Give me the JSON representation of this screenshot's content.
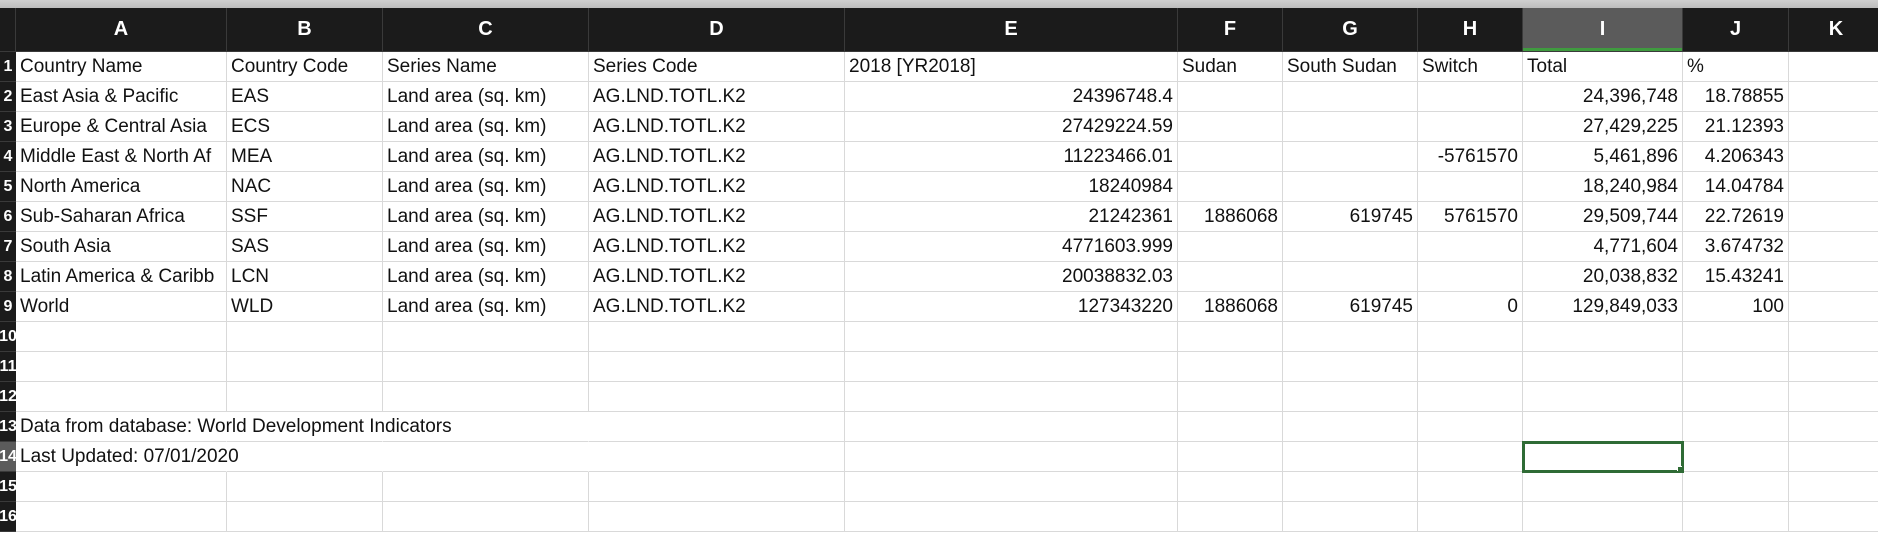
{
  "columns": [
    "A",
    "B",
    "C",
    "D",
    "E",
    "F",
    "G",
    "H",
    "I",
    "J",
    "K"
  ],
  "selected_column": "I",
  "selected_cell": "I14",
  "rows": [
    {
      "n": "1",
      "c": [
        "Country Name",
        "Country Code",
        "Series Name",
        "Series Code",
        "2018 [YR2018]",
        "Sudan",
        "South Sudan",
        "Switch",
        "Total",
        "%",
        ""
      ]
    },
    {
      "n": "2",
      "c": [
        "East Asia & Pacific",
        "EAS",
        "Land area (sq. km)",
        "AG.LND.TOTL.K2",
        "24396748.4",
        "",
        "",
        "",
        "24,396,748",
        "18.78855",
        ""
      ]
    },
    {
      "n": "3",
      "c": [
        "Europe & Central Asia",
        "ECS",
        "Land area (sq. km)",
        "AG.LND.TOTL.K2",
        "27429224.59",
        "",
        "",
        "",
        "27,429,225",
        "21.12393",
        ""
      ]
    },
    {
      "n": "4",
      "c": [
        "Middle East & North Af",
        "MEA",
        "Land area (sq. km)",
        "AG.LND.TOTL.K2",
        "11223466.01",
        "",
        "",
        "-5761570",
        "5,461,896",
        "4.206343",
        ""
      ]
    },
    {
      "n": "5",
      "c": [
        "North America",
        "NAC",
        "Land area (sq. km)",
        "AG.LND.TOTL.K2",
        "18240984",
        "",
        "",
        "",
        "18,240,984",
        "14.04784",
        ""
      ]
    },
    {
      "n": "6",
      "c": [
        "Sub-Saharan Africa",
        "SSF",
        "Land area (sq. km)",
        "AG.LND.TOTL.K2",
        "21242361",
        "1886068",
        "619745",
        "5761570",
        "29,509,744",
        "22.72619",
        ""
      ]
    },
    {
      "n": "7",
      "c": [
        "South Asia",
        "SAS",
        "Land area (sq. km)",
        "AG.LND.TOTL.K2",
        "4771603.999",
        "",
        "",
        "",
        "4,771,604",
        "3.674732",
        ""
      ]
    },
    {
      "n": "8",
      "c": [
        "Latin America & Caribb",
        "LCN",
        "Land area (sq. km)",
        "AG.LND.TOTL.K2",
        "20038832.03",
        "",
        "",
        "",
        "20,038,832",
        "15.43241",
        ""
      ]
    },
    {
      "n": "9",
      "c": [
        "World",
        "WLD",
        "Land area (sq. km)",
        "AG.LND.TOTL.K2",
        "127343220",
        "1886068",
        "619745",
        "0",
        "129,849,033",
        "100",
        ""
      ]
    },
    {
      "n": "10",
      "c": [
        "",
        "",
        "",
        "",
        "",
        "",
        "",
        "",
        "",
        "",
        ""
      ]
    },
    {
      "n": "11",
      "c": [
        "",
        "",
        "",
        "",
        "",
        "",
        "",
        "",
        "",
        "",
        ""
      ]
    },
    {
      "n": "12",
      "c": [
        "",
        "",
        "",
        "",
        "",
        "",
        "",
        "",
        "",
        "",
        ""
      ]
    },
    {
      "n": "13",
      "c": [
        "Data from database: World Development Indicators",
        "",
        "",
        "",
        "",
        "",
        "",
        "",
        "",
        "",
        ""
      ]
    },
    {
      "n": "14",
      "c": [
        "Last Updated: 07/01/2020",
        "",
        "",
        "",
        "",
        "",
        "",
        "",
        "",
        "",
        ""
      ]
    },
    {
      "n": "15",
      "c": [
        "",
        "",
        "",
        "",
        "",
        "",
        "",
        "",
        "",
        "",
        ""
      ]
    },
    {
      "n": "16",
      "c": [
        "",
        "",
        "",
        "",
        "",
        "",
        "",
        "",
        "",
        "",
        ""
      ]
    }
  ]
}
